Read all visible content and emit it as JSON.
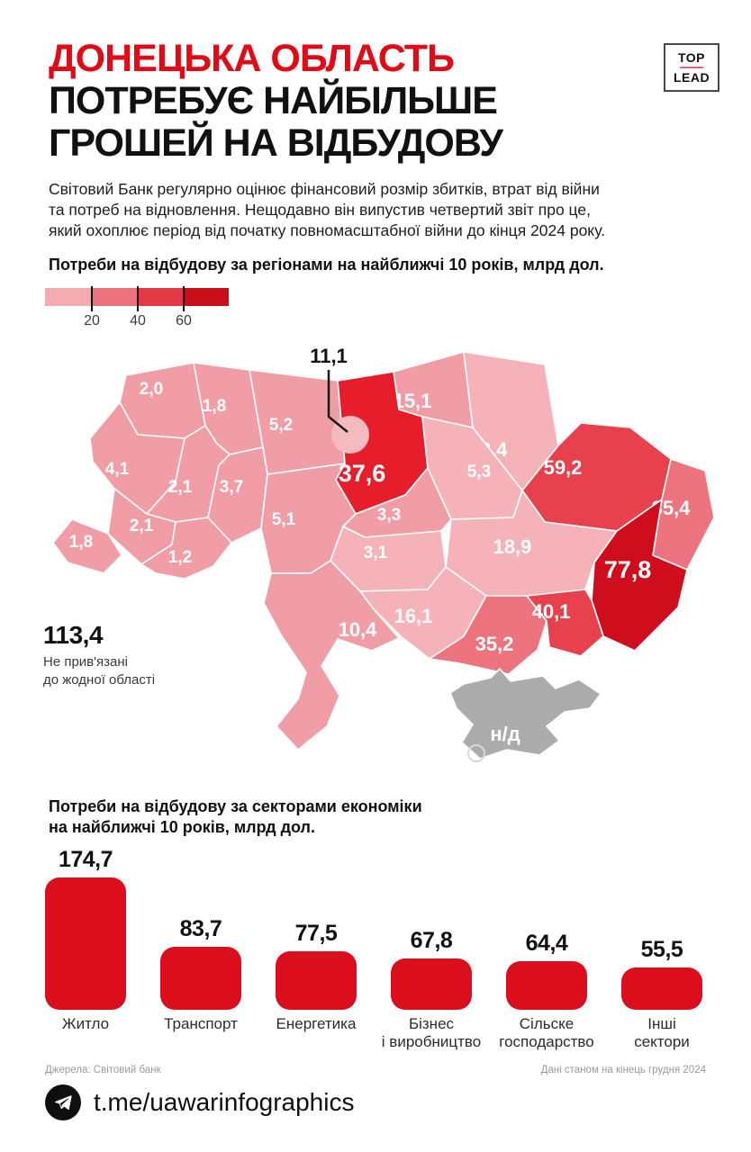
{
  "header": {
    "title_line1": "ДОНЕЦЬКА ОБЛАСТЬ",
    "title_line2": "ПОТРЕБУЄ НАЙБІЛЬШЕ",
    "title_line3": "ГРОШЕЙ НА ВІДБУДОВУ",
    "logo_top": "TOP",
    "logo_bottom": "LEAD"
  },
  "intro": {
    "line1": "Світовий Банк регулярно оцінює фінансовий розмір збитків, втрат від війни",
    "line2": "та потреб на відновлення. Нещодавно він випустив четвертий звіт про це,",
    "line3": "який охоплює період від початку повномасштабної війни до кінця 2024 року."
  },
  "chart_data": [
    {
      "type": "heatmap",
      "title": "Потреби на відбудову за регіонами на найближчі 10 років, млрд дол.",
      "legend_ticks": [
        "20",
        "40",
        "60"
      ],
      "legend_colors": [
        "#F3ABB2",
        "#EB737D",
        "#E23944",
        "#C8101D"
      ],
      "regions": [
        {
          "id": "volyn",
          "value": "2,0",
          "color": "#F09DA6"
        },
        {
          "id": "rivne",
          "value": "1,8",
          "color": "#F09DA6"
        },
        {
          "id": "zhytomyr",
          "value": "5,2",
          "color": "#F09DA6"
        },
        {
          "id": "kyiv-oblast",
          "value": "37,6",
          "color": "#E61E2B"
        },
        {
          "id": "chernihiv",
          "value": "15,1",
          "color": "#F09DA6"
        },
        {
          "id": "sumy",
          "value": "12,4",
          "color": "#F5B2B9"
        },
        {
          "id": "lviv",
          "value": "4,1",
          "color": "#F09DA6"
        },
        {
          "id": "ternopil",
          "value": "2,1",
          "color": "#F09DA6"
        },
        {
          "id": "khmelnytskyi",
          "value": "3,7",
          "color": "#F09DA6"
        },
        {
          "id": "ivano-frankivsk",
          "value": "2,1",
          "color": "#F09DA6"
        },
        {
          "id": "zakarpattia",
          "value": "1,8",
          "color": "#F09DA6"
        },
        {
          "id": "chernivtsi",
          "value": "1,2",
          "color": "#F09DA6"
        },
        {
          "id": "vinnytsia",
          "value": "5,1",
          "color": "#F09DA6"
        },
        {
          "id": "cherkasy",
          "value": "3,3",
          "color": "#F09DA6"
        },
        {
          "id": "poltava",
          "value": "5,3",
          "color": "#F5B2B9"
        },
        {
          "id": "kharkiv",
          "value": "59,2",
          "color": "#E6414D"
        },
        {
          "id": "luhansk",
          "value": "35,4",
          "color": "#ED747E"
        },
        {
          "id": "donetsk",
          "value": "77,8",
          "color": "#CE0E1D"
        },
        {
          "id": "dnipro",
          "value": "18,9",
          "color": "#F5B2B9"
        },
        {
          "id": "kirovohrad",
          "value": "3,1",
          "color": "#F5B2B9"
        },
        {
          "id": "mykolaiv",
          "value": "16,1",
          "color": "#F5B2B9"
        },
        {
          "id": "odesa",
          "value": "10,4",
          "color": "#F09DA6"
        },
        {
          "id": "kherson",
          "value": "35,2",
          "color": "#ED747E"
        },
        {
          "id": "zaporizhzhia",
          "value": "40,1",
          "color": "#E6414D"
        },
        {
          "id": "crimea",
          "value": "н/д",
          "color": "#ACACAC"
        }
      ],
      "kyiv_city": {
        "value": "11,1",
        "circle_color": "#F3BAC0"
      },
      "unattached": {
        "value": "113,4",
        "note_line1": "Не прив'язані",
        "note_line2": "до жодної області"
      }
    },
    {
      "type": "bar",
      "title_line1": "Потреби на відбудову за секторами економіки",
      "title_line2": "на найближчі 10 років, млрд дол.",
      "bar_color": "#DA0E1D",
      "bars": [
        {
          "label_line1": "Житло",
          "label_line2": "",
          "value": 174.7,
          "value_label": "174,7"
        },
        {
          "label_line1": "Транспорт",
          "label_line2": "",
          "value": 83.7,
          "value_label": "83,7"
        },
        {
          "label_line1": "Енергетика",
          "label_line2": "",
          "value": 77.5,
          "value_label": "77,5"
        },
        {
          "label_line1": "Бізнес",
          "label_line2": "і виробництво",
          "value": 67.8,
          "value_label": "67,8"
        },
        {
          "label_line1": "Сільске",
          "label_line2": "господарство",
          "value": 64.4,
          "value_label": "64,4"
        },
        {
          "label_line1": "Інші",
          "label_line2": "сектори",
          "value": 55.5,
          "value_label": "55,5"
        }
      ]
    }
  ],
  "footer": {
    "source": "Джерела: Світовий банк",
    "date_note": "Дані станом на кінець грудня 2024",
    "telegram": "t.me/uawarinfographics"
  }
}
